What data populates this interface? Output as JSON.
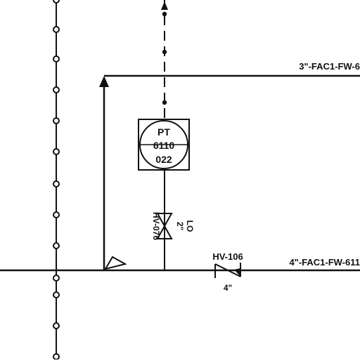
{
  "diagram": {
    "type": "piping-and-instrumentation",
    "lines": {
      "upper": {
        "label": "3\"-FAC1-FW-6"
      },
      "lower": {
        "label": "4\"-FAC1-FW-611"
      }
    },
    "instrument": {
      "tag": "PT",
      "number": "6110",
      "suffix": "022"
    },
    "isolation_valve": {
      "tag": "HV-076",
      "size": "2\"",
      "state": "LO"
    },
    "check_valve": {
      "tag": "HV-106",
      "size": "4\""
    }
  }
}
